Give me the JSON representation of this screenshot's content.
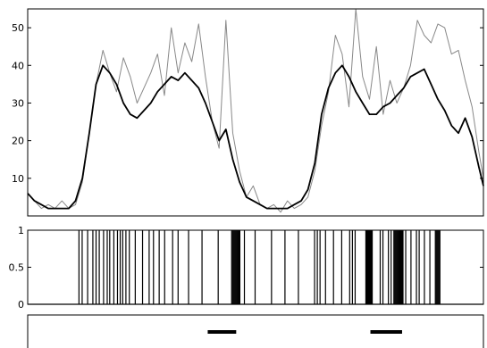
{
  "chart_data": [
    {
      "type": "line",
      "title": "",
      "xlabel": "",
      "ylabel": "",
      "xlim": [
        0,
        200
      ],
      "ylim": [
        0,
        55
      ],
      "yticks": [
        10,
        20,
        30,
        40,
        50
      ],
      "ytick_labels": [
        "10",
        "20",
        "30",
        "40",
        "50"
      ],
      "grid": false,
      "series": [
        {
          "color": "#888888",
          "x": [
            0,
            3,
            6,
            9,
            12,
            15,
            18,
            21,
            24,
            27,
            30,
            33,
            36,
            39,
            42,
            45,
            48,
            51,
            54,
            57,
            60,
            63,
            66,
            69,
            72,
            75,
            78,
            81,
            84,
            87,
            90,
            93,
            96,
            99,
            102,
            105,
            108,
            111,
            114,
            117,
            120,
            123,
            126,
            129,
            132,
            135,
            138,
            141,
            144,
            147,
            150,
            153,
            156,
            159,
            162,
            165,
            168,
            171,
            174,
            177,
            180,
            183,
            186,
            189,
            192,
            195,
            198,
            200
          ],
          "y": [
            6,
            4,
            2,
            3,
            2,
            4,
            2,
            3,
            9,
            22,
            35,
            44,
            38,
            33,
            42,
            37,
            30,
            34,
            38,
            43,
            32,
            50,
            38,
            46,
            41,
            51,
            37,
            25,
            18,
            52,
            22,
            12,
            5,
            8,
            3,
            2,
            3,
            1,
            4,
            2,
            3,
            5,
            12,
            24,
            33,
            48,
            43,
            29,
            55,
            37,
            31,
            45,
            27,
            36,
            30,
            34,
            40,
            52,
            48,
            46,
            51,
            50,
            43,
            44,
            36,
            29,
            17,
            10
          ]
        },
        {
          "color": "#000000",
          "x": [
            0,
            3,
            6,
            9,
            12,
            15,
            18,
            21,
            24,
            27,
            30,
            33,
            36,
            39,
            42,
            45,
            48,
            51,
            54,
            57,
            60,
            63,
            66,
            69,
            72,
            75,
            78,
            81,
            84,
            87,
            90,
            93,
            96,
            99,
            102,
            105,
            108,
            111,
            114,
            117,
            120,
            123,
            126,
            129,
            132,
            135,
            138,
            141,
            144,
            147,
            150,
            153,
            156,
            159,
            162,
            165,
            168,
            171,
            174,
            177,
            180,
            183,
            186,
            189,
            192,
            195,
            198,
            200
          ],
          "y": [
            6,
            4,
            3,
            2,
            2,
            2,
            2,
            4,
            10,
            22,
            35,
            40,
            38,
            35,
            30,
            27,
            26,
            28,
            30,
            33,
            35,
            37,
            36,
            38,
            36,
            34,
            30,
            25,
            20,
            23,
            15,
            9,
            5,
            4,
            3,
            2,
            2,
            2,
            2,
            3,
            4,
            7,
            14,
            27,
            34,
            38,
            40,
            37,
            33,
            30,
            27,
            27,
            29,
            30,
            32,
            34,
            37,
            38,
            39,
            35,
            31,
            28,
            24,
            22,
            26,
            21,
            13,
            8
          ]
        }
      ]
    },
    {
      "type": "bar",
      "title": "",
      "xlabel": "",
      "ylabel": "",
      "xlim": [
        0,
        200
      ],
      "ylim": [
        0,
        1
      ],
      "yticks": [
        0,
        0.5,
        1
      ],
      "ytick_labels": [
        "0",
        "0.5",
        "1"
      ],
      "grid": false,
      "pulse_times": [
        22.5,
        23.9,
        26.3,
        28.6,
        30.0,
        31.4,
        33.3,
        34.9,
        36.0,
        37.8,
        39.4,
        40.6,
        41.7,
        43.1,
        44.6,
        47.2,
        50.4,
        53.3,
        55.2,
        57.7,
        60.1,
        63.6,
        66.0,
        70.6,
        76.5,
        83.6,
        89.5,
        89.9,
        90.3,
        90.7,
        91.1,
        91.5,
        91.9,
        92.3,
        92.7,
        93.1,
        95.1,
        99.8,
        107.0,
        112.9,
        118.8,
        125.9,
        127.1,
        128.3,
        130.7,
        134.2,
        137.8,
        141.3,
        142.5,
        143.7,
        148.4,
        148.8,
        149.2,
        149.6,
        150.0,
        150.4,
        150.8,
        151.2,
        154.7,
        155.9,
        158.3,
        159.5,
        160.7,
        161.1,
        161.5,
        161.9,
        162.3,
        162.7,
        163.1,
        163.5,
        163.9,
        164.3,
        164.7,
        165.9,
        168.2,
        170.6,
        171.8,
        174.1,
        176.5,
        178.9,
        179.3,
        179.7,
        180.1,
        180.5,
        180.9
      ]
    },
    {
      "type": "bar",
      "title": "",
      "xlabel": "",
      "ylabel": "",
      "xlim": [
        0,
        200
      ],
      "grid": false,
      "segments": [
        [
          79.0,
          91.5
        ],
        [
          150.4,
          164.3
        ]
      ]
    }
  ]
}
